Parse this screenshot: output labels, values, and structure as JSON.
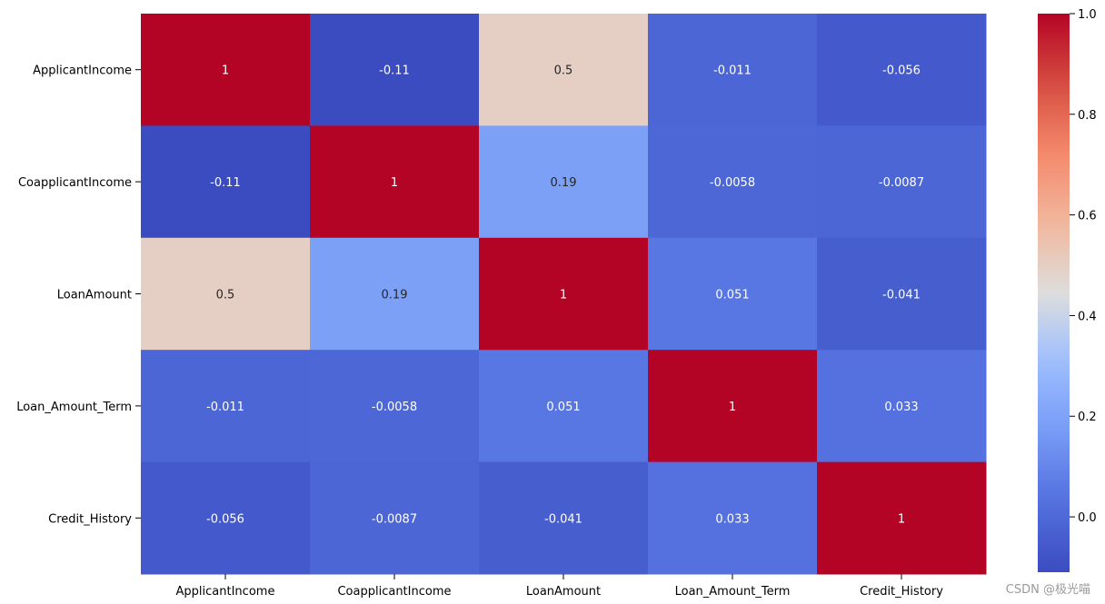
{
  "chart_data": {
    "type": "heatmap",
    "title": "",
    "xlabel": "",
    "ylabel": "",
    "row_labels": [
      "ApplicantIncome",
      "CoapplicantIncome",
      "LoanAmount",
      "Loan_Amount_Term",
      "Credit_History"
    ],
    "col_labels": [
      "ApplicantIncome",
      "CoapplicantIncome",
      "LoanAmount",
      "Loan_Amount_Term",
      "Credit_History"
    ],
    "matrix": [
      [
        1,
        -0.11,
        0.5,
        -0.011,
        -0.056
      ],
      [
        -0.11,
        1,
        0.19,
        -0.0058,
        -0.0087
      ],
      [
        0.5,
        0.19,
        1,
        0.051,
        -0.041
      ],
      [
        -0.011,
        -0.0058,
        0.051,
        1,
        0.033
      ],
      [
        -0.056,
        -0.0087,
        -0.041,
        0.033,
        1
      ]
    ],
    "annotations": [
      [
        "1",
        "-0.11",
        "0.5",
        "-0.011",
        "-0.056"
      ],
      [
        "-0.11",
        "1",
        "0.19",
        "-0.0058",
        "-0.0087"
      ],
      [
        "0.5",
        "0.19",
        "1",
        "0.051",
        "-0.041"
      ],
      [
        "-0.011",
        "-0.0058",
        "0.051",
        "1",
        "0.033"
      ],
      [
        "-0.056",
        "-0.0087",
        "-0.041",
        "0.033",
        "1"
      ]
    ],
    "colormap": "coolwarm",
    "vmin": -0.11,
    "vmax": 1,
    "colorbar": {
      "ticks": [
        0.0,
        0.2,
        0.4,
        0.6,
        0.8,
        1.0
      ],
      "tick_labels": [
        "0.0",
        "0.2",
        "0.4",
        "0.6",
        "0.8",
        "1.0"
      ]
    }
  },
  "watermark": "CSDN @极光喵"
}
